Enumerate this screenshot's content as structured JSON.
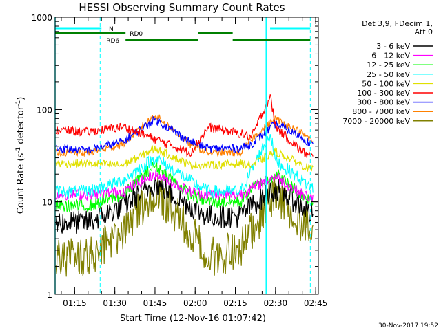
{
  "chart_data": {
    "type": "line",
    "title": "HESSI Observing Summary Count Rates",
    "xlabel": "Start Time (12-Nov-16 01:07:42)",
    "ylabel": "Count Rate (s⁻¹ detector⁻¹)",
    "ylim": [
      1,
      1000
    ],
    "yscale": "log",
    "xlim_minutes": [
      67.7,
      166
    ],
    "x_ticks": [
      "01:15",
      "01:30",
      "01:45",
      "02:00",
      "02:15",
      "02:30",
      "02:45"
    ],
    "y_ticks": [
      "1",
      "10",
      "100",
      "1000"
    ],
    "info": [
      "Det 3,9, FDecim 1,",
      "Att 0"
    ],
    "timestamp": "30-Nov-2017 19:52",
    "segments": [
      {
        "label": "N",
        "color": "#00ffff",
        "times": [
          [
            "01:07:42",
            "01:25"
          ],
          [
            "02:28",
            "02:43"
          ]
        ]
      },
      {
        "label": "RD0",
        "color": "#008000",
        "times": [
          [
            "01:07:42",
            "01:34"
          ],
          [
            "02:01",
            "02:14"
          ]
        ]
      },
      {
        "label": "RD6",
        "color": "#008000",
        "times": [
          [
            "01:34",
            "02:01"
          ],
          [
            "02:14",
            "02:43"
          ]
        ]
      }
    ],
    "vlines_solid": [
      "01:07:42",
      "02:26:30"
    ],
    "vlines_dashed": [
      "01:24:30",
      "02:43:00"
    ],
    "series": [
      {
        "name": "3 - 6 keV",
        "color": "#000000",
        "values": [
          [
            68,
            6
          ],
          [
            80,
            6
          ],
          [
            93,
            9
          ],
          [
            105,
            16
          ],
          [
            118,
            9
          ],
          [
            125,
            7
          ],
          [
            137,
            7
          ],
          [
            141,
            9
          ],
          [
            150,
            14
          ],
          [
            160,
            9
          ],
          [
            164,
            7
          ]
        ]
      },
      {
        "name": "6 - 12 keV",
        "color": "#ff00ff",
        "values": [
          [
            68,
            12
          ],
          [
            80,
            12
          ],
          [
            93,
            13
          ],
          [
            105,
            20
          ],
          [
            118,
            13
          ],
          [
            125,
            12
          ],
          [
            137,
            12
          ],
          [
            141,
            14
          ],
          [
            150,
            19
          ],
          [
            160,
            12
          ],
          [
            164,
            11
          ]
        ]
      },
      {
        "name": "12 - 25 keV",
        "color": "#00ff00",
        "values": [
          [
            68,
            9
          ],
          [
            80,
            9
          ],
          [
            93,
            12
          ],
          [
            105,
            25
          ],
          [
            118,
            12
          ],
          [
            125,
            10
          ],
          [
            137,
            10
          ],
          [
            141,
            14
          ],
          [
            150,
            20
          ],
          [
            160,
            12
          ],
          [
            164,
            10
          ]
        ]
      },
      {
        "name": "25 - 50 keV",
        "color": "#00ffff",
        "values": [
          [
            68,
            13
          ],
          [
            80,
            13
          ],
          [
            93,
            17
          ],
          [
            105,
            30
          ],
          [
            118,
            17
          ],
          [
            125,
            13
          ],
          [
            137,
            13
          ],
          [
            141,
            22
          ],
          [
            148,
            55
          ],
          [
            150,
            28
          ],
          [
            160,
            17
          ],
          [
            164,
            14
          ]
        ]
      },
      {
        "name": "50 - 100 keV",
        "color": "#e0e000",
        "values": [
          [
            68,
            26
          ],
          [
            80,
            26
          ],
          [
            93,
            25
          ],
          [
            105,
            38
          ],
          [
            118,
            25
          ],
          [
            125,
            25
          ],
          [
            137,
            26
          ],
          [
            141,
            25
          ],
          [
            150,
            35
          ],
          [
            160,
            25
          ],
          [
            164,
            22
          ]
        ]
      },
      {
        "name": "100 - 300 keV",
        "color": "#ff0000",
        "values": [
          [
            68,
            60
          ],
          [
            80,
            57
          ],
          [
            93,
            65
          ],
          [
            105,
            48
          ],
          [
            118,
            34
          ],
          [
            125,
            64
          ],
          [
            137,
            55
          ],
          [
            141,
            50
          ],
          [
            148,
            140
          ],
          [
            150,
            65
          ],
          [
            160,
            35
          ],
          [
            164,
            30
          ]
        ]
      },
      {
        "name": "300 - 800 keV",
        "color": "#0000ff",
        "values": [
          [
            68,
            38
          ],
          [
            80,
            36
          ],
          [
            93,
            45
          ],
          [
            105,
            78
          ],
          [
            118,
            45
          ],
          [
            125,
            38
          ],
          [
            137,
            38
          ],
          [
            141,
            42
          ],
          [
            150,
            70
          ],
          [
            160,
            50
          ],
          [
            164,
            40
          ]
        ]
      },
      {
        "name": "800 - 7000 keV",
        "color": "#ff8000",
        "values": [
          [
            68,
            34
          ],
          [
            80,
            34
          ],
          [
            93,
            42
          ],
          [
            105,
            88
          ],
          [
            118,
            42
          ],
          [
            125,
            34
          ],
          [
            137,
            34
          ],
          [
            141,
            48
          ],
          [
            150,
            80
          ],
          [
            160,
            55
          ],
          [
            164,
            45
          ]
        ]
      },
      {
        "name": "7000 - 20000 keV",
        "color": "#808000",
        "values": [
          [
            68,
            2.5
          ],
          [
            80,
            2.5
          ],
          [
            93,
            5
          ],
          [
            105,
            13
          ],
          [
            118,
            5
          ],
          [
            125,
            2.5
          ],
          [
            137,
            3
          ],
          [
            141,
            5
          ],
          [
            150,
            12
          ],
          [
            160,
            6
          ],
          [
            164,
            4
          ]
        ]
      }
    ]
  }
}
